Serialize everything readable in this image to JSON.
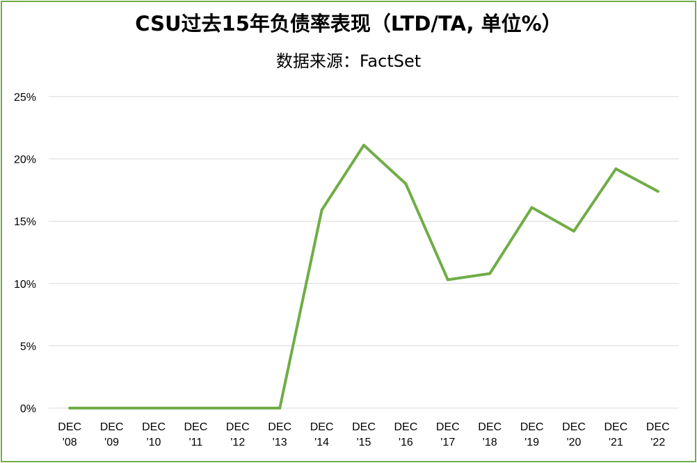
{
  "chart_data": {
    "type": "line",
    "title": "CSU过去15年负债率表现（LTD/TA, 单位%）",
    "subtitle": "数据来源：FactSet",
    "categories": [
      [
        "DEC",
        "'08"
      ],
      [
        "DEC",
        "'09"
      ],
      [
        "DEC",
        "'10"
      ],
      [
        "DEC",
        "'11"
      ],
      [
        "DEC",
        "'12"
      ],
      [
        "DEC",
        "'13"
      ],
      [
        "DEC",
        "'14"
      ],
      [
        "DEC",
        "'15"
      ],
      [
        "DEC",
        "'16"
      ],
      [
        "DEC",
        "'17"
      ],
      [
        "DEC",
        "'18"
      ],
      [
        "DEC",
        "'19"
      ],
      [
        "DEC",
        "'20"
      ],
      [
        "DEC",
        "'21"
      ],
      [
        "DEC",
        "'22"
      ]
    ],
    "series": [
      {
        "values": [
          0,
          0,
          0,
          0,
          0,
          0,
          15.9,
          21.1,
          18.0,
          10.3,
          10.8,
          16.1,
          14.2,
          19.2,
          17.4
        ]
      }
    ],
    "ylim": [
      0,
      25
    ],
    "yticks": [
      0,
      5,
      10,
      15,
      20,
      25
    ],
    "ytick_labels": [
      "0%",
      "5%",
      "10%",
      "15%",
      "20%",
      "25%"
    ],
    "grid": true,
    "line_color": "#70ad47",
    "grid_color": "#d9d9d9",
    "border_color": "#70ad47"
  }
}
